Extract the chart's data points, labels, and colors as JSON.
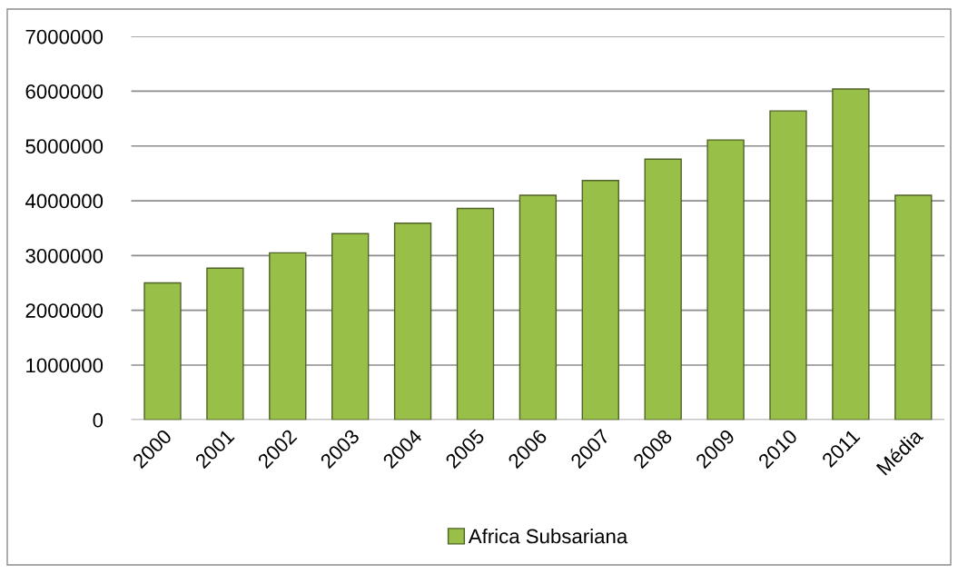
{
  "chart_data": {
    "type": "bar",
    "categories": [
      "2000",
      "2001",
      "2002",
      "2003",
      "2004",
      "2005",
      "2006",
      "2007",
      "2008",
      "2009",
      "2010",
      "2011",
      "Média"
    ],
    "series": [
      {
        "name": "Africa Subsariana",
        "color": "#98bf47",
        "values": [
          2500000,
          2770000,
          3050000,
          3400000,
          3590000,
          3860000,
          4100000,
          4370000,
          4760000,
          5110000,
          5640000,
          6040000,
          4100000
        ]
      }
    ],
    "ylim": [
      0,
      7000000
    ],
    "yticks": [
      0,
      1000000,
      2000000,
      3000000,
      4000000,
      5000000,
      6000000,
      7000000
    ],
    "grid": "y",
    "legend": "bottom"
  }
}
